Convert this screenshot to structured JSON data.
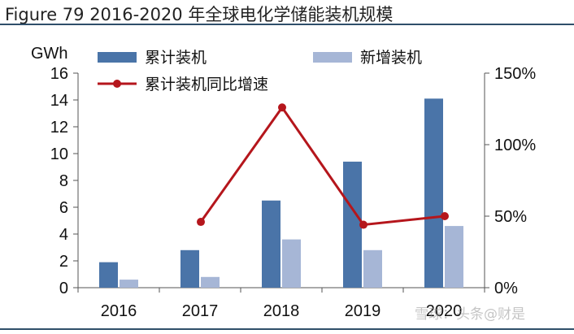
{
  "figure_title": "Figure 79 2016-2020 年全球电化学储能装机规模",
  "watermark": "雪球：头条@财是",
  "colors": {
    "cumulative": "#4a74a8",
    "new": "#a6b6d6",
    "growth": "#b5161c",
    "rule": "#2f4f6a",
    "axis": "#555555"
  },
  "chart_data": {
    "type": "bar",
    "categories": [
      "2016",
      "2017",
      "2018",
      "2019",
      "2020"
    ],
    "y_unit": "GWh",
    "ylim": [
      0,
      16
    ],
    "yticks": [
      "0",
      "2",
      "4",
      "6",
      "8",
      "10",
      "12",
      "14",
      "16"
    ],
    "y2lim": [
      0,
      150
    ],
    "y2ticks": [
      "0%",
      "50%",
      "100%",
      "150%"
    ],
    "grid": false,
    "legend_position": "top",
    "series": [
      {
        "name": "累计装机",
        "type": "bar",
        "axis": "left",
        "values": [
          1.9,
          2.8,
          6.5,
          9.4,
          14.1
        ]
      },
      {
        "name": "新增装机",
        "type": "bar",
        "axis": "left",
        "values": [
          0.6,
          0.8,
          3.6,
          2.8,
          4.6
        ]
      },
      {
        "name": "累计装机同比增速",
        "type": "line",
        "axis": "right",
        "values": [
          null,
          46,
          126,
          44,
          50
        ]
      }
    ]
  }
}
